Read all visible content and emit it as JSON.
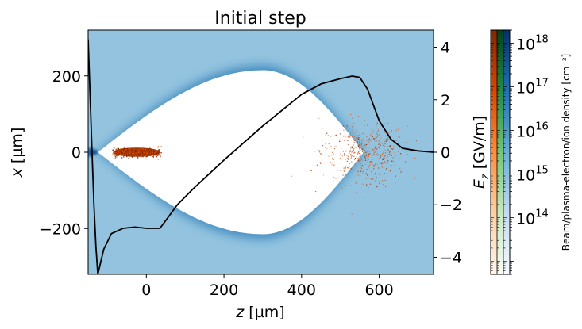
{
  "chart_data": {
    "type": "heatmap",
    "title": "Initial step",
    "xlabel": "z [µm]",
    "ylabel": "x [µm]",
    "y2label": "E_z [GV/m]",
    "colorbar_label": "Beam/plasma-electron/ion density [cm⁻³]",
    "xlim": [
      -150,
      740
    ],
    "ylim": [
      -320,
      320
    ],
    "y2lim": [
      -4.65,
      4.65
    ],
    "x_ticks": [
      0,
      200,
      400,
      600
    ],
    "x_tick_labels": [
      "0",
      "200",
      "400",
      "600"
    ],
    "y_ticks": [
      200,
      0,
      -200
    ],
    "y_tick_labels": [
      "200",
      "0",
      "−200"
    ],
    "y2_ticks": [
      4,
      2,
      0,
      -2,
      -4
    ],
    "y2_tick_labels": [
      "4",
      "2",
      "0",
      "−2",
      "−4"
    ],
    "colorbar": {
      "scale": "log",
      "range": [
        5000000000000.0,
        2e+18
      ],
      "tick_values": [
        100000000000000.0,
        1000000000000000.0,
        1e+16,
        1e+17,
        1e+18
      ],
      "tick_labels": [
        "10^14",
        "10^15",
        "10^16",
        "10^17",
        "10^18"
      ],
      "colormaps": [
        "Oranges",
        "Greens",
        "Blues"
      ]
    },
    "bubble_boundary": {
      "name": "plasma-electron sheath",
      "z_front": -125,
      "z_back": 560,
      "z_max_radius": 300,
      "max_radius": 215
    },
    "beams": [
      {
        "name": "driver beam",
        "z_center": 560,
        "z_rms": 55,
        "x_rms": 40
      },
      {
        "name": "witness beam",
        "z_center": -25,
        "z_half_length": 60,
        "x_half_width": 12
      }
    ],
    "series": [
      {
        "name": "E_z on axis",
        "axis": "right",
        "x": [
          -150,
          -140,
          -135,
          -130,
          -125,
          -110,
          -90,
          -60,
          -30,
          0,
          20,
          35,
          50,
          80,
          120,
          200,
          300,
          400,
          450,
          500,
          530,
          550,
          570,
          600,
          630,
          660,
          700,
          740
        ],
        "y": [
          4.3,
          0.0,
          -2.0,
          -3.6,
          -4.65,
          -3.7,
          -3.1,
          -2.9,
          -2.85,
          -2.9,
          -2.9,
          -2.9,
          -2.6,
          -2.0,
          -1.4,
          -0.3,
          1.0,
          2.2,
          2.6,
          2.8,
          2.9,
          2.85,
          2.4,
          1.2,
          0.5,
          0.15,
          0.05,
          0.0
        ]
      }
    ],
    "colors": {
      "background_plasma": "#93c3df",
      "bubble": "#ffffff",
      "sheath": "#2c7bb6",
      "beam": "#a63603",
      "field_line": "#000000"
    }
  }
}
